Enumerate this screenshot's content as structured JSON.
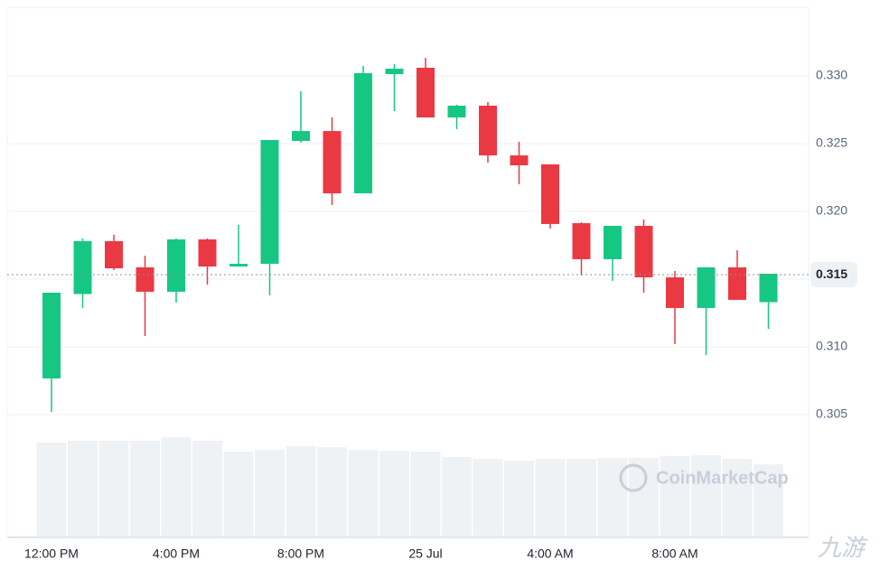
{
  "chart_data": {
    "type": "candlestick",
    "categories": [
      "12:00 PM",
      null,
      null,
      null,
      "4:00 PM",
      null,
      null,
      null,
      "8:00 PM",
      null,
      null,
      null,
      "25 Jul",
      null,
      null,
      null,
      "4:00 AM",
      null,
      null,
      null,
      "8:00 AM",
      null,
      null,
      null
    ],
    "open": [
      0.30767,
      0.3139,
      0.3178,
      0.31587,
      0.31407,
      0.31793,
      0.31593,
      0.31613,
      0.3252,
      0.32593,
      0.32133,
      0.33013,
      0.3306,
      0.32693,
      0.3278,
      0.32413,
      0.32347,
      0.31913,
      0.31647,
      0.31893,
      0.31513,
      0.31287,
      0.31587,
      0.3133
    ],
    "high": [
      0.314,
      0.318,
      0.31827,
      0.31673,
      0.318,
      0.318,
      0.319,
      0.32527,
      0.32887,
      0.32693,
      0.33073,
      0.33087,
      0.33133,
      0.32787,
      0.32807,
      0.32513,
      0.32347,
      0.3192,
      0.31893,
      0.3194,
      0.3156,
      0.31587,
      0.31713,
      0.3154
    ],
    "low": [
      0.3052,
      0.31287,
      0.31567,
      0.3108,
      0.31327,
      0.3146,
      0.31593,
      0.3138,
      0.32507,
      0.32047,
      0.32133,
      0.3274,
      0.32693,
      0.32607,
      0.3236,
      0.322,
      0.31873,
      0.31527,
      0.31487,
      0.314,
      0.3102,
      0.3094,
      0.31347,
      0.31133
    ],
    "close": [
      0.314,
      0.3178,
      0.3158,
      0.31407,
      0.31793,
      0.31593,
      0.31613,
      0.32527,
      0.32593,
      0.32133,
      0.3302,
      0.33053,
      0.32693,
      0.3278,
      0.32413,
      0.3234,
      0.31907,
      0.31647,
      0.31893,
      0.31513,
      0.31287,
      0.31587,
      0.31347,
      0.3154
    ],
    "volume": [
      104,
      106,
      106,
      106,
      110,
      106,
      94,
      96,
      100,
      99,
      96,
      95,
      94,
      88,
      86,
      84,
      86,
      86,
      87,
      87,
      89,
      90,
      86,
      80
    ],
    "up_color": "#16c784",
    "down_color": "#ea3943",
    "volume_color": "#eff2f5",
    "ylim": [
      0.296,
      0.335
    ],
    "yticks": [
      0.305,
      {
        "value": 0.31,
        "label": "0.310"
      },
      0.315,
      {
        "value": 0.32,
        "label": "0.320"
      },
      0.325,
      {
        "value": 0.33,
        "label": "0.330"
      }
    ],
    "grid": true,
    "current_price": {
      "value": 0.31533,
      "label": "0.315"
    },
    "watermark": "CoinMarketCap",
    "corner_watermark": "九游"
  }
}
